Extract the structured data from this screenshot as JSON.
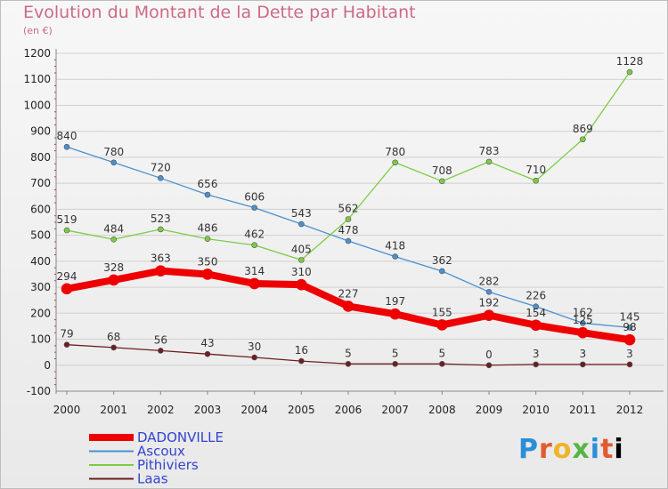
{
  "header": {
    "title": "Evolution du Montant de la Dette par Habitant",
    "subtitle": "(en €)"
  },
  "logo": {
    "letters": [
      "P",
      "r",
      "o",
      "x",
      "i",
      "t",
      "i"
    ]
  },
  "colors": {
    "DADONVILLE": "#ee0000",
    "Ascoux": "#4a90d0",
    "Pithiviers": "#7ccc44",
    "Laas": "#6b1f1f",
    "grid": "#d0d0d0"
  },
  "chart_data": {
    "type": "line",
    "title": "Evolution du Montant de la Dette par Habitant",
    "subtitle": "(en €)",
    "x": [
      "2000",
      "2001",
      "2002",
      "2003",
      "2004",
      "2005",
      "2006",
      "2007",
      "2008",
      "2009",
      "2010",
      "2011",
      "2012"
    ],
    "yticks": [
      "-100",
      "0",
      "100",
      "200",
      "300",
      "400",
      "500",
      "600",
      "700",
      "800",
      "900",
      "1000",
      "1100",
      "1200"
    ],
    "ylim": [
      -100,
      1200
    ],
    "grid": true,
    "legend_position": "bottom-left",
    "series": [
      {
        "name": "DADONVILLE",
        "values": [
          294,
          328,
          363,
          350,
          314,
          310,
          227,
          197,
          155,
          192,
          154,
          125,
          98
        ]
      },
      {
        "name": "Ascoux",
        "values": [
          840,
          780,
          720,
          656,
          606,
          543,
          478,
          418,
          362,
          282,
          226,
          162,
          145
        ]
      },
      {
        "name": "Pithiviers",
        "values": [
          519,
          484,
          523,
          486,
          462,
          405,
          562,
          780,
          708,
          783,
          710,
          869,
          1128
        ]
      },
      {
        "name": "Laas",
        "values": [
          79,
          68,
          56,
          43,
          30,
          16,
          5,
          5,
          5,
          0,
          3,
          3,
          3
        ]
      }
    ]
  }
}
